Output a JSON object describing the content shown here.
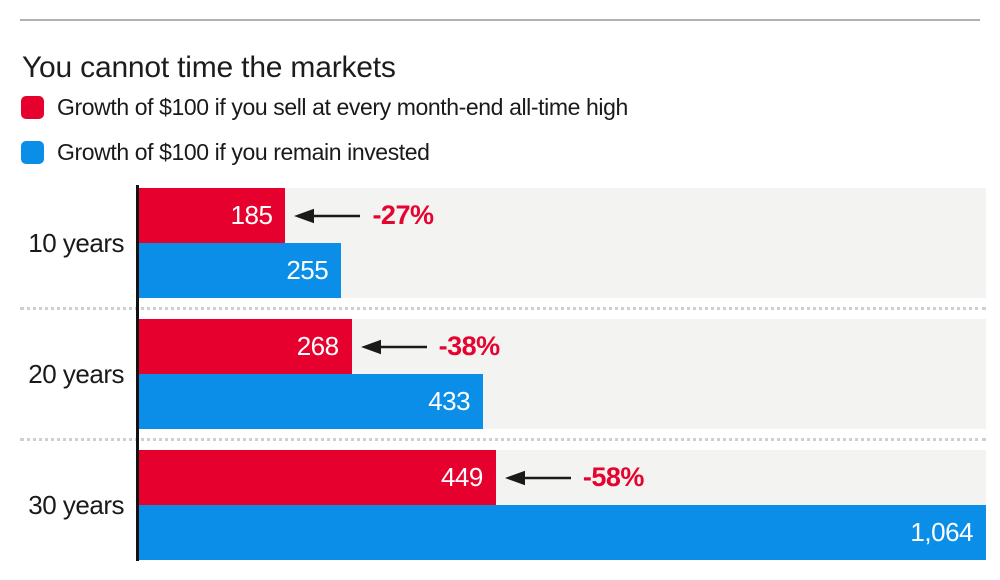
{
  "header": {
    "title": "You cannot time the markets"
  },
  "legend": {
    "items": [
      {
        "label": "Growth of $100 if you sell at every month-end all-time high",
        "color": "#e6002e"
      },
      {
        "label": "Growth of $100 if you remain invested",
        "color": "#0a8ee8"
      }
    ]
  },
  "colors": {
    "sell_red": "#e6002e",
    "invested_blue": "#0a8ee8",
    "plot_band_gray": "#f3f3f1",
    "annotation_red": "#e4042f",
    "axis_black": "#121212",
    "dotted_separator": "#cfcfcd",
    "top_rule": "#b1b1b1",
    "text": "#1a1a1a"
  },
  "chart_data": {
    "type": "bar",
    "orientation": "horizontal",
    "title": "You cannot time the markets",
    "categories": [
      "10 years",
      "20 years",
      "30 years"
    ],
    "series": [
      {
        "name": "Growth of $100 if you sell at every month-end all-time high",
        "color": "#e6002e",
        "values": [
          185,
          268,
          449
        ]
      },
      {
        "name": "Growth of $100 if you remain invested",
        "color": "#0a8ee8",
        "values": [
          255,
          433,
          1064
        ]
      }
    ],
    "annotations": [
      "-27%",
      "-38%",
      "-58%"
    ],
    "xlim": [
      0,
      1064
    ],
    "xmax": 1064,
    "grid": false,
    "legend_position": "top",
    "groups": [
      {
        "label": "10 years",
        "sell": 185,
        "sell_label": "185",
        "invested": 255,
        "invested_label": "255",
        "loss_pct": "-27%"
      },
      {
        "label": "20 years",
        "sell": 268,
        "sell_label": "268",
        "invested": 433,
        "invested_label": "433",
        "loss_pct": "-38%"
      },
      {
        "label": "30 years",
        "sell": 449,
        "sell_label": "449",
        "invested": 1064,
        "invested_label": "1,064",
        "loss_pct": "-58%"
      }
    ]
  }
}
